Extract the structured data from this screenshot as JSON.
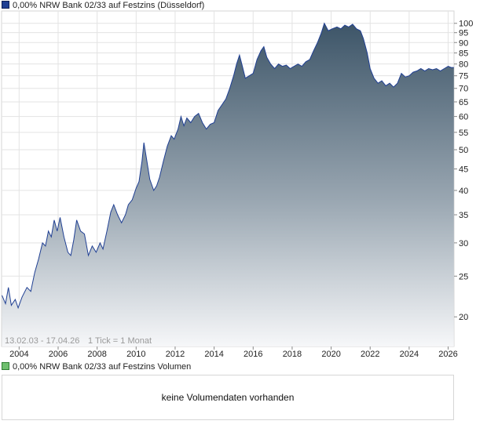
{
  "chart_data": {
    "type": "area",
    "title": "0,00% NRW Bank 02/33 auf Festzins (Düsseldorf)",
    "range_text": "13.02.03 - 17.04.26",
    "tick_text": "1 Tick = 1 Monat",
    "y_scale": "log",
    "ylim": [
      17,
      107
    ],
    "xlim": [
      2003.1,
      2026.3
    ],
    "grid": true,
    "x_ticks": [
      2004,
      2006,
      2008,
      2010,
      2012,
      2014,
      2016,
      2018,
      2020,
      2022,
      2024,
      2026
    ],
    "x_tick_labels": [
      "2004",
      "2006",
      "2008",
      "2010",
      "2012",
      "2014",
      "2016",
      "2018",
      "2020",
      "2022",
      "2024",
      "2026"
    ],
    "y_ticks": [
      20,
      25,
      30,
      35,
      40,
      45,
      50,
      55,
      60,
      65,
      70,
      75,
      80,
      85,
      90,
      95,
      100
    ],
    "y_tick_labels": [
      "20",
      "25",
      "30",
      "35",
      "40",
      "45",
      "50",
      "55",
      "60",
      "65",
      "70",
      "75",
      "80",
      "85",
      "90",
      "95",
      "100"
    ],
    "series": [
      {
        "color": "#1f3f93",
        "points": [
          [
            2003.12,
            22.5
          ],
          [
            2003.3,
            21.5
          ],
          [
            2003.45,
            23.5
          ],
          [
            2003.6,
            21.3
          ],
          [
            2003.8,
            22.0
          ],
          [
            2003.95,
            21.0
          ],
          [
            2004.15,
            22.3
          ],
          [
            2004.4,
            23.5
          ],
          [
            2004.6,
            23.0
          ],
          [
            2004.8,
            25.5
          ],
          [
            2005.0,
            27.5
          ],
          [
            2005.2,
            30.0
          ],
          [
            2005.35,
            29.5
          ],
          [
            2005.5,
            32.0
          ],
          [
            2005.65,
            31.0
          ],
          [
            2005.8,
            34.0
          ],
          [
            2005.95,
            32.0
          ],
          [
            2006.1,
            34.5
          ],
          [
            2006.3,
            31.0
          ],
          [
            2006.5,
            28.5
          ],
          [
            2006.65,
            28.0
          ],
          [
            2006.8,
            30.5
          ],
          [
            2006.95,
            34.0
          ],
          [
            2007.15,
            32.0
          ],
          [
            2007.35,
            31.5
          ],
          [
            2007.55,
            28.0
          ],
          [
            2007.75,
            29.5
          ],
          [
            2007.95,
            28.5
          ],
          [
            2008.15,
            30.0
          ],
          [
            2008.3,
            29.0
          ],
          [
            2008.5,
            32.0
          ],
          [
            2008.7,
            35.5
          ],
          [
            2008.85,
            37.0
          ],
          [
            2009.05,
            35.0
          ],
          [
            2009.25,
            33.5
          ],
          [
            2009.45,
            35.0
          ],
          [
            2009.6,
            37.0
          ],
          [
            2009.8,
            38.0
          ],
          [
            2010.0,
            40.5
          ],
          [
            2010.15,
            42.0
          ],
          [
            2010.3,
            47.0
          ],
          [
            2010.4,
            52.0
          ],
          [
            2010.55,
            47.0
          ],
          [
            2010.7,
            42.5
          ],
          [
            2010.9,
            40.0
          ],
          [
            2011.05,
            41.0
          ],
          [
            2011.2,
            43.0
          ],
          [
            2011.4,
            47.0
          ],
          [
            2011.6,
            51.0
          ],
          [
            2011.8,
            54.0
          ],
          [
            2011.95,
            53.0
          ],
          [
            2012.15,
            56.0
          ],
          [
            2012.3,
            60.0
          ],
          [
            2012.45,
            57.0
          ],
          [
            2012.6,
            59.5
          ],
          [
            2012.8,
            58.0
          ],
          [
            2013.0,
            60.0
          ],
          [
            2013.2,
            61.0
          ],
          [
            2013.4,
            58.0
          ],
          [
            2013.6,
            56.0
          ],
          [
            2013.8,
            57.5
          ],
          [
            2014.0,
            58.0
          ],
          [
            2014.2,
            62.0
          ],
          [
            2014.4,
            64.0
          ],
          [
            2014.6,
            66.0
          ],
          [
            2014.8,
            70.0
          ],
          [
            2015.0,
            75.0
          ],
          [
            2015.15,
            80.0
          ],
          [
            2015.3,
            84.0
          ],
          [
            2015.45,
            79.0
          ],
          [
            2015.6,
            74.0
          ],
          [
            2015.8,
            75.0
          ],
          [
            2016.0,
            76.0
          ],
          [
            2016.2,
            82.0
          ],
          [
            2016.4,
            86.0
          ],
          [
            2016.55,
            88.0
          ],
          [
            2016.7,
            83.0
          ],
          [
            2016.9,
            80.0
          ],
          [
            2017.1,
            78.0
          ],
          [
            2017.3,
            80.0
          ],
          [
            2017.5,
            79.0
          ],
          [
            2017.7,
            79.5
          ],
          [
            2017.9,
            78.0
          ],
          [
            2018.1,
            79.0
          ],
          [
            2018.3,
            80.0
          ],
          [
            2018.5,
            79.0
          ],
          [
            2018.7,
            81.0
          ],
          [
            2018.9,
            82.0
          ],
          [
            2019.1,
            86.0
          ],
          [
            2019.3,
            90.0
          ],
          [
            2019.5,
            95.0
          ],
          [
            2019.65,
            100.0
          ],
          [
            2019.85,
            96.0
          ],
          [
            2020.05,
            97.0
          ],
          [
            2020.3,
            98.0
          ],
          [
            2020.5,
            97.0
          ],
          [
            2020.7,
            99.0
          ],
          [
            2020.9,
            98.0
          ],
          [
            2021.1,
            99.5
          ],
          [
            2021.3,
            97.0
          ],
          [
            2021.5,
            96.0
          ],
          [
            2021.65,
            92.0
          ],
          [
            2021.85,
            85.0
          ],
          [
            2022.0,
            78.0
          ],
          [
            2022.2,
            74.0
          ],
          [
            2022.4,
            72.0
          ],
          [
            2022.6,
            73.0
          ],
          [
            2022.8,
            71.0
          ],
          [
            2023.0,
            72.0
          ],
          [
            2023.2,
            70.5
          ],
          [
            2023.4,
            72.0
          ],
          [
            2023.6,
            76.0
          ],
          [
            2023.8,
            74.5
          ],
          [
            2024.0,
            75.0
          ],
          [
            2024.2,
            76.5
          ],
          [
            2024.4,
            77.0
          ],
          [
            2024.6,
            78.0
          ],
          [
            2024.8,
            77.0
          ],
          [
            2025.0,
            78.0
          ],
          [
            2025.2,
            77.5
          ],
          [
            2025.4,
            78.0
          ],
          [
            2025.6,
            77.0
          ],
          [
            2025.8,
            78.0
          ],
          [
            2026.0,
            79.0
          ],
          [
            2026.15,
            78.5
          ],
          [
            2026.29,
            78.5
          ]
        ]
      }
    ]
  },
  "legend": {
    "price_label": "0,00% NRW Bank 02/33 auf Festzins (Düsseldorf)",
    "volume_label": "0,00% NRW Bank 02/33 auf Festzins Volumen"
  },
  "volume": {
    "message": "keine Volumendaten vorhanden"
  },
  "colors": {
    "line": "#1f3f93",
    "fill_top": "#3d5568",
    "fill_bottom": "#f6f7f9",
    "grid": "#e3e3e3"
  }
}
